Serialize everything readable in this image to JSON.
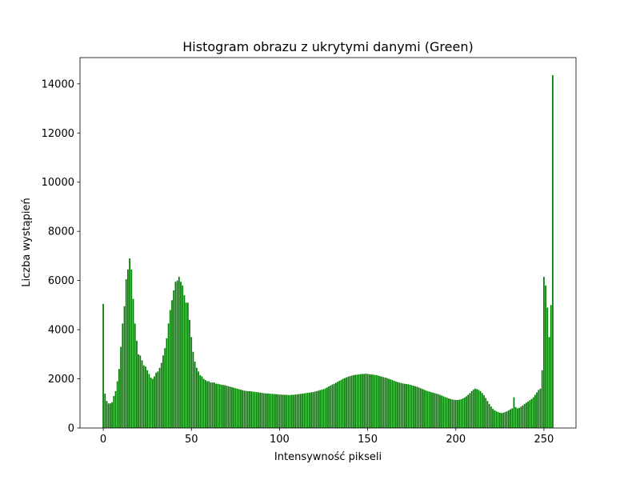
{
  "chart_data": {
    "type": "bar",
    "title": "Histogram obrazu z ukrytymi danymi (Green)",
    "x_label": "Intensywność pikseli",
    "y_label": "Liczba wystąpień",
    "color": "#008000",
    "bar_width": 0.8,
    "xlim": [
      -13.19,
      268.19
    ],
    "ylim": [
      0,
      15068
    ],
    "xticks": [
      0,
      50,
      100,
      150,
      200,
      250
    ],
    "yticks": [
      0,
      2000,
      4000,
      6000,
      8000,
      10000,
      12000,
      14000
    ],
    "x": [
      0,
      1,
      2,
      3,
      4,
      5,
      6,
      7,
      8,
      9,
      10,
      11,
      12,
      13,
      14,
      15,
      16,
      17,
      18,
      19,
      20,
      21,
      22,
      23,
      24,
      25,
      26,
      27,
      28,
      29,
      30,
      31,
      32,
      33,
      34,
      35,
      36,
      37,
      38,
      39,
      40,
      41,
      42,
      43,
      44,
      45,
      46,
      47,
      48,
      49,
      50,
      51,
      52,
      53,
      54,
      55,
      56,
      57,
      58,
      59,
      60,
      61,
      62,
      63,
      64,
      65,
      66,
      67,
      68,
      69,
      70,
      71,
      72,
      73,
      74,
      75,
      76,
      77,
      78,
      79,
      80,
      81,
      82,
      83,
      84,
      85,
      86,
      87,
      88,
      89,
      90,
      91,
      92,
      93,
      94,
      95,
      96,
      97,
      98,
      99,
      100,
      101,
      102,
      103,
      104,
      105,
      106,
      107,
      108,
      109,
      110,
      111,
      112,
      113,
      114,
      115,
      116,
      117,
      118,
      119,
      120,
      121,
      122,
      123,
      124,
      125,
      126,
      127,
      128,
      129,
      130,
      131,
      132,
      133,
      134,
      135,
      136,
      137,
      138,
      139,
      140,
      141,
      142,
      143,
      144,
      145,
      146,
      147,
      148,
      149,
      150,
      151,
      152,
      153,
      154,
      155,
      156,
      157,
      158,
      159,
      160,
      161,
      162,
      163,
      164,
      165,
      166,
      167,
      168,
      169,
      170,
      171,
      172,
      173,
      174,
      175,
      176,
      177,
      178,
      179,
      180,
      181,
      182,
      183,
      184,
      185,
      186,
      187,
      188,
      189,
      190,
      191,
      192,
      193,
      194,
      195,
      196,
      197,
      198,
      199,
      200,
      201,
      202,
      203,
      204,
      205,
      206,
      207,
      208,
      209,
      210,
      211,
      212,
      213,
      214,
      215,
      216,
      217,
      218,
      219,
      220,
      221,
      222,
      223,
      224,
      225,
      226,
      227,
      228,
      229,
      230,
      231,
      232,
      233,
      234,
      235,
      236,
      237,
      238,
      239,
      240,
      241,
      242,
      243,
      244,
      245,
      246,
      247,
      248,
      249,
      250,
      251,
      252,
      253,
      254,
      255
    ],
    "values": [
      5050,
      1400,
      1100,
      1000,
      1000,
      1050,
      1300,
      1500,
      1900,
      2400,
      3300,
      4250,
      4950,
      6050,
      6450,
      6900,
      6450,
      5250,
      4250,
      3550,
      3000,
      2950,
      2750,
      2550,
      2500,
      2350,
      2200,
      2050,
      2000,
      2100,
      2250,
      2300,
      2450,
      2650,
      2950,
      3250,
      3650,
      4250,
      4800,
      5200,
      5600,
      5950,
      6000,
      6150,
      5950,
      5800,
      5400,
      5100,
      5100,
      4400,
      3700,
      3100,
      2700,
      2450,
      2300,
      2150,
      2100,
      2000,
      1950,
      1900,
      1900,
      1850,
      1850,
      1850,
      1800,
      1800,
      1780,
      1760,
      1750,
      1740,
      1720,
      1700,
      1680,
      1660,
      1640,
      1620,
      1600,
      1580,
      1560,
      1540,
      1520,
      1510,
      1500,
      1500,
      1490,
      1480,
      1470,
      1460,
      1450,
      1440,
      1430,
      1420,
      1410,
      1400,
      1400,
      1390,
      1390,
      1380,
      1380,
      1370,
      1360,
      1360,
      1350,
      1350,
      1350,
      1340,
      1340,
      1350,
      1350,
      1360,
      1370,
      1380,
      1390,
      1400,
      1410,
      1420,
      1430,
      1440,
      1450,
      1460,
      1480,
      1500,
      1520,
      1540,
      1560,
      1580,
      1610,
      1650,
      1690,
      1730,
      1770,
      1800,
      1840,
      1880,
      1920,
      1960,
      2000,
      2030,
      2060,
      2090,
      2110,
      2130,
      2150,
      2160,
      2170,
      2180,
      2190,
      2200,
      2200,
      2210,
      2200,
      2190,
      2180,
      2170,
      2160,
      2150,
      2130,
      2110,
      2090,
      2070,
      2050,
      2030,
      2000,
      1980,
      1950,
      1920,
      1890,
      1870,
      1850,
      1830,
      1810,
      1800,
      1790,
      1780,
      1760,
      1740,
      1720,
      1700,
      1680,
      1650,
      1620,
      1590,
      1560,
      1530,
      1500,
      1480,
      1460,
      1440,
      1420,
      1400,
      1380,
      1350,
      1320,
      1290,
      1260,
      1230,
      1200,
      1180,
      1160,
      1150,
      1140,
      1140,
      1150,
      1170,
      1200,
      1240,
      1290,
      1350,
      1420,
      1500,
      1560,
      1600,
      1580,
      1550,
      1500,
      1420,
      1330,
      1220,
      1100,
      980,
      870,
      780,
      720,
      680,
      650,
      620,
      610,
      620,
      650,
      680,
      720,
      760,
      800,
      1250,
      850,
      800,
      820,
      870,
      920,
      980,
      1030,
      1080,
      1130,
      1180,
      1250,
      1350,
      1450,
      1550,
      1600,
      2350,
      6150,
      5800,
      4900,
      3700,
      5000,
      14350
    ]
  }
}
